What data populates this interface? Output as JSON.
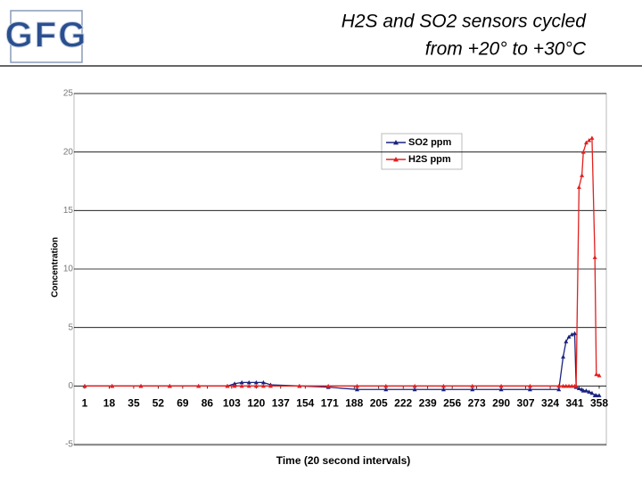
{
  "logo": "GFG",
  "chart_data": {
    "type": "line",
    "title": [
      "H2S and SO2 sensors cycled",
      "from +20° to +30°C"
    ],
    "xlabel": "Time (20 second intervals)",
    "ylabel": "Concentration",
    "x": [
      1,
      20,
      40,
      60,
      80,
      100,
      105,
      110,
      115,
      120,
      125,
      130,
      150,
      170,
      190,
      210,
      230,
      250,
      270,
      290,
      310,
      330,
      333,
      335,
      337,
      339,
      341,
      342,
      344,
      346,
      347,
      349,
      351,
      353,
      355,
      356,
      358
    ],
    "series": [
      {
        "name": "SO2 ppm",
        "color": "#1a237e",
        "values": [
          0,
          0,
          0,
          0,
          0,
          0,
          0.2,
          0.3,
          0.3,
          0.3,
          0.3,
          0.1,
          0,
          -0.1,
          -0.3,
          -0.3,
          -0.3,
          -0.3,
          -0.3,
          -0.3,
          -0.3,
          -0.3,
          2.5,
          3.8,
          4.2,
          4.4,
          4.5,
          -0.1,
          -0.2,
          -0.3,
          -0.4,
          -0.4,
          -0.5,
          -0.6,
          -0.8,
          -0.8,
          -0.8
        ]
      },
      {
        "name": "H2S ppm",
        "color": "#e02020",
        "values": [
          0,
          0,
          0,
          0,
          0,
          0,
          0,
          0,
          0,
          0,
          0,
          0,
          0,
          0,
          0,
          0,
          0,
          0,
          0,
          0,
          0,
          0,
          0,
          0,
          0,
          0,
          0,
          0,
          17,
          18,
          20,
          20.8,
          21,
          21.2,
          11,
          1,
          0.9
        ]
      }
    ],
    "xlim": [
      1,
      358
    ],
    "xticks": [
      1,
      18,
      35,
      52,
      69,
      86,
      103,
      120,
      137,
      154,
      171,
      188,
      205,
      222,
      239,
      256,
      273,
      290,
      307,
      324,
      341,
      358
    ],
    "ylim": [
      -5,
      25
    ],
    "yticks": [
      -5,
      0,
      5,
      10,
      15,
      20,
      25
    ],
    "grid": true,
    "legend": "top-right"
  }
}
